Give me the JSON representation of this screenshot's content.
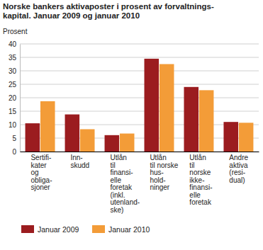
{
  "chart_data": {
    "type": "bar",
    "title": "Norske bankers aktivaposter i prosent av forvaltnings-\nkapital. Januar 2009 og januar 2010",
    "y_label": "Prosent",
    "categories": [
      "Sertifi-\nkater\nog\nobliga-\nsjoner",
      "Inn-\nskudd",
      "Utlån\ntil\nfinansi-\nelle\nforetak\n(inkl.\nutenland-\nske)",
      "Utlån\ntil norske\nhus-\nhold-\nninger",
      "Utlån\ntil\nnorske\nikke-\nfinansi-\nelle\nforetak",
      "Andre\naktiva\n(resi-\ndual)"
    ],
    "series": [
      {
        "name": "Januar 2009",
        "color": "#9b1c1f",
        "values": [
          10.5,
          13.8,
          6.1,
          34.5,
          24.0,
          11.0
        ]
      },
      {
        "name": "Januar 2010",
        "color": "#f39c38",
        "values": [
          18.7,
          8.3,
          6.7,
          32.5,
          22.8,
          10.7
        ]
      }
    ],
    "ylim": [
      0,
      40
    ],
    "yticks": [
      0,
      5,
      10,
      15,
      20,
      25,
      30,
      35,
      40
    ],
    "grid": true,
    "legend": "bottom"
  }
}
